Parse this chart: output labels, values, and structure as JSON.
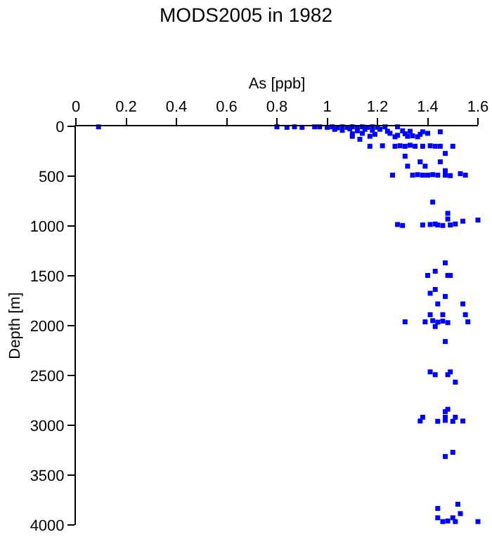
{
  "chart_data": {
    "type": "scatter",
    "title": "MODS2005 in 1982",
    "xlabel": "As [ppb]",
    "ylabel": "Depth [m]",
    "marker": "square",
    "grid": false,
    "xlim": [
      0,
      1.6
    ],
    "xticks": [
      0,
      0.2,
      0.4,
      0.6,
      0.8,
      1,
      1.2,
      1.4,
      1.6
    ],
    "ylim": [
      4000,
      0
    ],
    "yticks": [
      0,
      500,
      1000,
      1500,
      2000,
      2500,
      3000,
      3500,
      4000
    ],
    "series": [
      {
        "color": "#0000ff",
        "x": [
          0.09,
          0.8,
          0.84,
          0.87,
          0.9,
          0.95,
          0.97,
          1.0,
          1.02,
          1.04,
          1.06,
          1.08,
          1.1,
          1.12,
          1.14,
          1.16,
          1.18,
          1.2,
          1.23,
          1.28,
          1.03,
          1.06,
          1.09,
          1.12,
          1.15,
          1.18,
          1.21,
          1.24,
          1.3,
          1.33,
          1.38,
          1.45,
          1.1,
          1.14,
          1.19,
          1.25,
          1.28,
          1.31,
          1.34,
          1.37,
          1.4,
          1.1,
          1.17,
          1.27,
          1.32,
          1.36,
          1.13,
          1.17,
          1.22,
          1.27,
          1.29,
          1.31,
          1.33,
          1.35,
          1.38,
          1.41,
          1.43,
          1.45,
          1.5,
          1.47,
          1.31,
          1.37,
          1.45,
          1.32,
          1.39,
          1.47,
          1.26,
          1.34,
          1.36,
          1.38,
          1.4,
          1.42,
          1.44,
          1.47,
          1.49,
          1.53,
          1.55,
          1.42,
          1.48,
          1.48,
          1.54,
          1.6,
          1.28,
          1.3,
          1.38,
          1.41,
          1.43,
          1.44,
          1.46,
          1.49,
          1.51,
          1.47,
          1.43,
          1.4,
          1.48,
          1.49,
          1.43,
          1.41,
          1.47,
          1.44,
          1.54,
          1.41,
          1.46,
          1.55,
          1.31,
          1.39,
          1.42,
          1.44,
          1.46,
          1.48,
          1.56,
          1.43,
          1.47,
          1.41,
          1.49,
          1.43,
          1.48,
          1.51,
          1.48,
          1.47,
          1.38,
          1.47,
          1.51,
          1.37,
          1.44,
          1.47,
          1.5,
          1.54,
          1.5,
          1.47,
          1.52,
          1.44,
          1.53,
          1.44,
          1.5,
          1.46,
          1.48,
          1.51,
          1.6
        ],
        "values": [
          5,
          5,
          10,
          5,
          10,
          5,
          5,
          10,
          5,
          15,
          5,
          10,
          5,
          15,
          5,
          10,
          5,
          10,
          5,
          5,
          30,
          40,
          25,
          45,
          30,
          40,
          30,
          50,
          45,
          50,
          55,
          55,
          75,
          70,
          80,
          70,
          90,
          75,
          95,
          80,
          70,
          100,
          100,
          105,
          100,
          105,
          130,
          200,
          195,
          200,
          195,
          200,
          190,
          200,
          200,
          195,
          200,
          200,
          200,
          272,
          300,
          356,
          356,
          400,
          400,
          445,
          490,
          490,
          485,
          490,
          490,
          485,
          490,
          490,
          495,
          475,
          490,
          760,
          873,
          930,
          952,
          940,
          985,
          995,
          990,
          985,
          980,
          990,
          995,
          990,
          980,
          1370,
          1454,
          1496,
          1496,
          1496,
          1637,
          1675,
          1707,
          1782,
          1782,
          1890,
          1890,
          1890,
          1962,
          1962,
          1950,
          1965,
          1955,
          1970,
          1962,
          2009,
          2159,
          2464,
          2464,
          2492,
          2492,
          2567,
          2839,
          2863,
          2919,
          2919,
          2919,
          2957,
          2960,
          2950,
          2960,
          2957,
          3271,
          3313,
          3792,
          3834,
          3886,
          3928,
          3928,
          3966,
          3960,
          3966,
          3966
        ]
      }
    ]
  }
}
